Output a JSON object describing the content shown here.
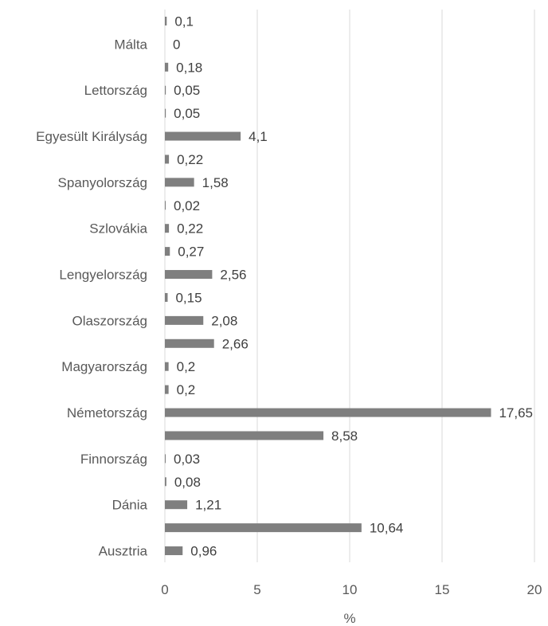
{
  "chart_data": {
    "type": "bar",
    "orientation": "horizontal",
    "xlabel": "%",
    "ylabel": "",
    "xlim": [
      0,
      20
    ],
    "xticks": [
      0,
      5,
      10,
      15,
      20
    ],
    "grid": "vertical",
    "legend": "none",
    "bar_color": "#7f7f7f",
    "rows": [
      {
        "label": "Ausztria",
        "value": 0.96,
        "value_label": "0,96"
      },
      {
        "label": "",
        "value": 10.64,
        "value_label": "10,64"
      },
      {
        "label": "Dánia",
        "value": 1.21,
        "value_label": "1,21"
      },
      {
        "label": "",
        "value": 0.08,
        "value_label": "0,08"
      },
      {
        "label": "Finnország",
        "value": 0.03,
        "value_label": "0,03"
      },
      {
        "label": "",
        "value": 8.58,
        "value_label": "8,58"
      },
      {
        "label": "Németország",
        "value": 17.65,
        "value_label": "17,65"
      },
      {
        "label": "",
        "value": 0.2,
        "value_label": "0,2"
      },
      {
        "label": "Magyarország",
        "value": 0.2,
        "value_label": "0,2"
      },
      {
        "label": "",
        "value": 2.66,
        "value_label": "2,66"
      },
      {
        "label": "Olaszország",
        "value": 2.08,
        "value_label": "2,08"
      },
      {
        "label": "",
        "value": 0.15,
        "value_label": "0,15"
      },
      {
        "label": "Lengyelország",
        "value": 2.56,
        "value_label": "2,56"
      },
      {
        "label": "",
        "value": 0.27,
        "value_label": "0,27"
      },
      {
        "label": "Szlovákia",
        "value": 0.22,
        "value_label": "0,22"
      },
      {
        "label": "",
        "value": 0.02,
        "value_label": "0,02"
      },
      {
        "label": "Spanyolország",
        "value": 1.58,
        "value_label": "1,58"
      },
      {
        "label": "",
        "value": 0.22,
        "value_label": "0,22"
      },
      {
        "label": "Egyesült Királyság",
        "value": 4.1,
        "value_label": "4,1"
      },
      {
        "label": "",
        "value": 0.05,
        "value_label": "0,05"
      },
      {
        "label": "Lettország",
        "value": 0.05,
        "value_label": "0,05"
      },
      {
        "label": "",
        "value": 0.18,
        "value_label": "0,18"
      },
      {
        "label": "Málta",
        "value": 0,
        "value_label": "0"
      },
      {
        "label": "",
        "value": 0.1,
        "value_label": "0,1"
      }
    ]
  }
}
